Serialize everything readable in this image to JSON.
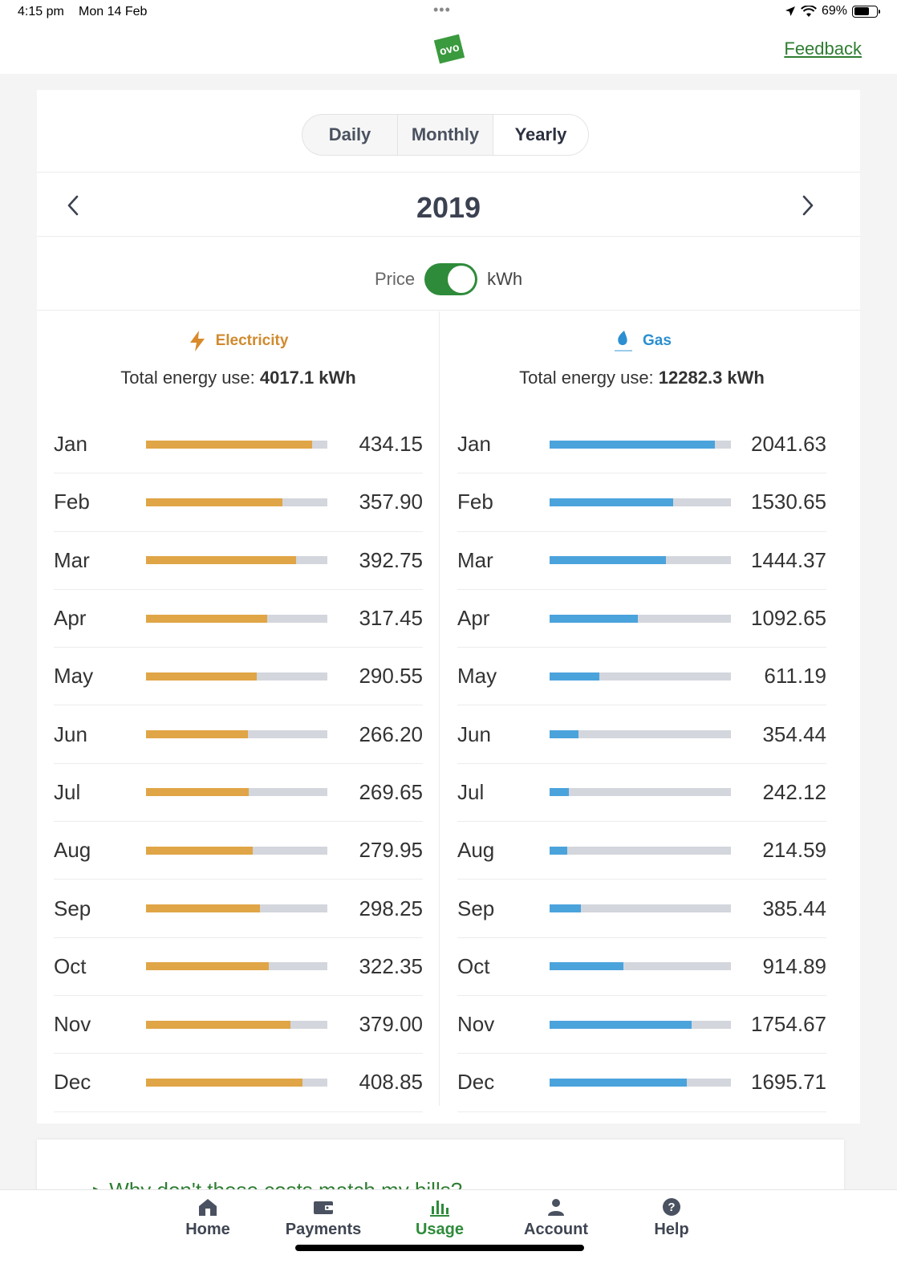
{
  "status": {
    "time": "4:15 pm",
    "date": "Mon 14 Feb",
    "battery": "69%",
    "battery_level": 0.69
  },
  "header": {
    "feedback": "Feedback",
    "logo_text": "ovo"
  },
  "periods": [
    "Daily",
    "Monthly",
    "Yearly"
  ],
  "selected_period": "Yearly",
  "year": "2019",
  "toggle": {
    "left": "Price",
    "right": "kWh",
    "on": true
  },
  "electricity": {
    "label": "Electricity",
    "total_prefix": "Total energy use: ",
    "total": "4017.1 kWh",
    "color": "#e0a546",
    "max": 475,
    "rows": [
      {
        "month": "Jan",
        "value": "434.15"
      },
      {
        "month": "Feb",
        "value": "357.90"
      },
      {
        "month": "Mar",
        "value": "392.75"
      },
      {
        "month": "Apr",
        "value": "317.45"
      },
      {
        "month": "May",
        "value": "290.55"
      },
      {
        "month": "Jun",
        "value": "266.20"
      },
      {
        "month": "Jul",
        "value": "269.65"
      },
      {
        "month": "Aug",
        "value": "279.95"
      },
      {
        "month": "Sep",
        "value": "298.25"
      },
      {
        "month": "Oct",
        "value": "322.35"
      },
      {
        "month": "Nov",
        "value": "379.00"
      },
      {
        "month": "Dec",
        "value": "408.85"
      }
    ]
  },
  "gas": {
    "label": "Gas",
    "total_prefix": "Total energy use: ",
    "total": "12282.3 kWh",
    "color": "#4ba3dc",
    "max": 2245,
    "rows": [
      {
        "month": "Jan",
        "value": "2041.63"
      },
      {
        "month": "Feb",
        "value": "1530.65"
      },
      {
        "month": "Mar",
        "value": "1444.37"
      },
      {
        "month": "Apr",
        "value": "1092.65"
      },
      {
        "month": "May",
        "value": "611.19"
      },
      {
        "month": "Jun",
        "value": "354.44"
      },
      {
        "month": "Jul",
        "value": "242.12"
      },
      {
        "month": "Aug",
        "value": "214.59"
      },
      {
        "month": "Sep",
        "value": "385.44"
      },
      {
        "month": "Oct",
        "value": "914.89"
      },
      {
        "month": "Nov",
        "value": "1754.67"
      },
      {
        "month": "Dec",
        "value": "1695.71"
      }
    ]
  },
  "faq": "Why don't these costs match my bills?",
  "tabs": [
    {
      "label": "Home",
      "icon": "home-icon"
    },
    {
      "label": "Payments",
      "icon": "wallet-icon"
    },
    {
      "label": "Usage",
      "icon": "bar-chart-icon"
    },
    {
      "label": "Account",
      "icon": "person-icon"
    },
    {
      "label": "Help",
      "icon": "question-icon"
    }
  ],
  "active_tab": "Usage"
}
